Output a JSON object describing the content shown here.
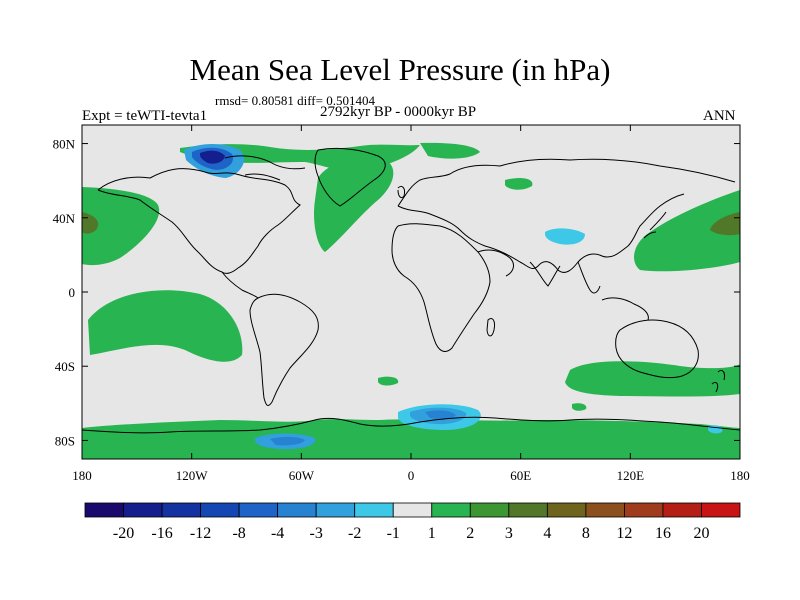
{
  "title": "Mean Sea Level Pressure (in hPa)",
  "stats": "rmsd= 0.80581 diff= 0.501404",
  "experiment": "Expt = teWTI-tevta1",
  "period": "2792kyr BP - 0000kyr BP",
  "season": "ANN",
  "map": {
    "lon_range": [
      -180,
      180
    ],
    "lat_range": [
      -90,
      90
    ],
    "lon_ticks": [
      {
        "lon": -180,
        "label": "180"
      },
      {
        "lon": -120,
        "label": "120W"
      },
      {
        "lon": -60,
        "label": "60W"
      },
      {
        "lon": 0,
        "label": "0"
      },
      {
        "lon": 60,
        "label": "60E"
      },
      {
        "lon": 120,
        "label": "120E"
      },
      {
        "lon": 180,
        "label": "180"
      }
    ],
    "lat_ticks": [
      {
        "lat": 80,
        "label": "80N"
      },
      {
        "lat": 40,
        "label": "40N"
      },
      {
        "lat": 0,
        "label": "0"
      },
      {
        "lat": -40,
        "label": "40S"
      },
      {
        "lat": -80,
        "label": "80S"
      }
    ]
  },
  "colorbar": {
    "labels": [
      "-20",
      "-16",
      "-12",
      "-8",
      "-4",
      "-3",
      "-2",
      "-1",
      "1",
      "2",
      "3",
      "4",
      "8",
      "12",
      "16",
      "20"
    ],
    "colors": [
      "#1a0a6e",
      "#141e8c",
      "#1432a0",
      "#1446b4",
      "#1e64c8",
      "#2882d2",
      "#32a0dc",
      "#3cc8e6",
      "#e6e6e6",
      "#28b450",
      "#3c9632",
      "#507828",
      "#6e641e",
      "#8c501e",
      "#a03c1e",
      "#b41e14",
      "#c81414"
    ]
  }
}
